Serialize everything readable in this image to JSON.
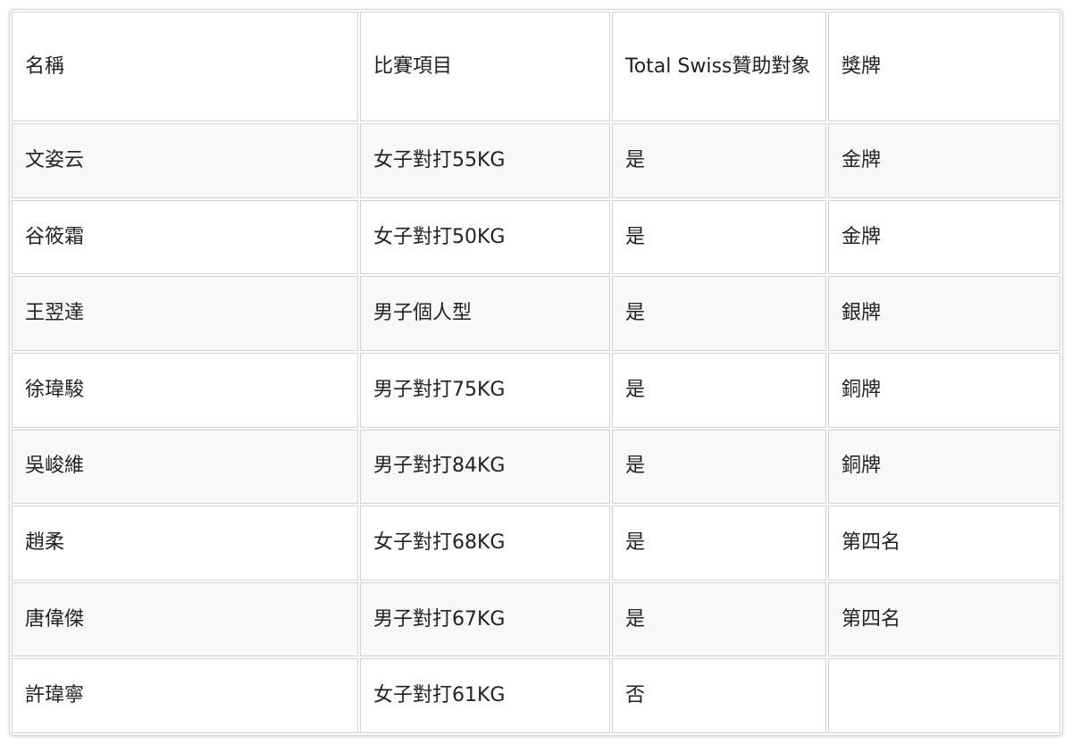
{
  "table": {
    "headers": [
      "名稱",
      "比賽項目",
      "Total Swiss贊助對象",
      "獎牌"
    ],
    "rows": [
      [
        "文姿云",
        "女子對打55KG",
        "是",
        "金牌"
      ],
      [
        "谷筱霜",
        "女子對打50KG",
        "是",
        "金牌"
      ],
      [
        "王翌達",
        "男子個人型",
        "是",
        "銀牌"
      ],
      [
        "徐瑋駿",
        "男子對打75KG",
        "是",
        "銅牌"
      ],
      [
        "吳峻維",
        "男子對打84KG",
        "是",
        "銅牌"
      ],
      [
        "趙柔",
        "女子對打68KG",
        "是",
        "第四名"
      ],
      [
        "唐偉傑",
        "男子對打67KG",
        "是",
        "第四名"
      ],
      [
        "許瑋寧",
        "女子對打61KG",
        "否",
        ""
      ]
    ]
  }
}
